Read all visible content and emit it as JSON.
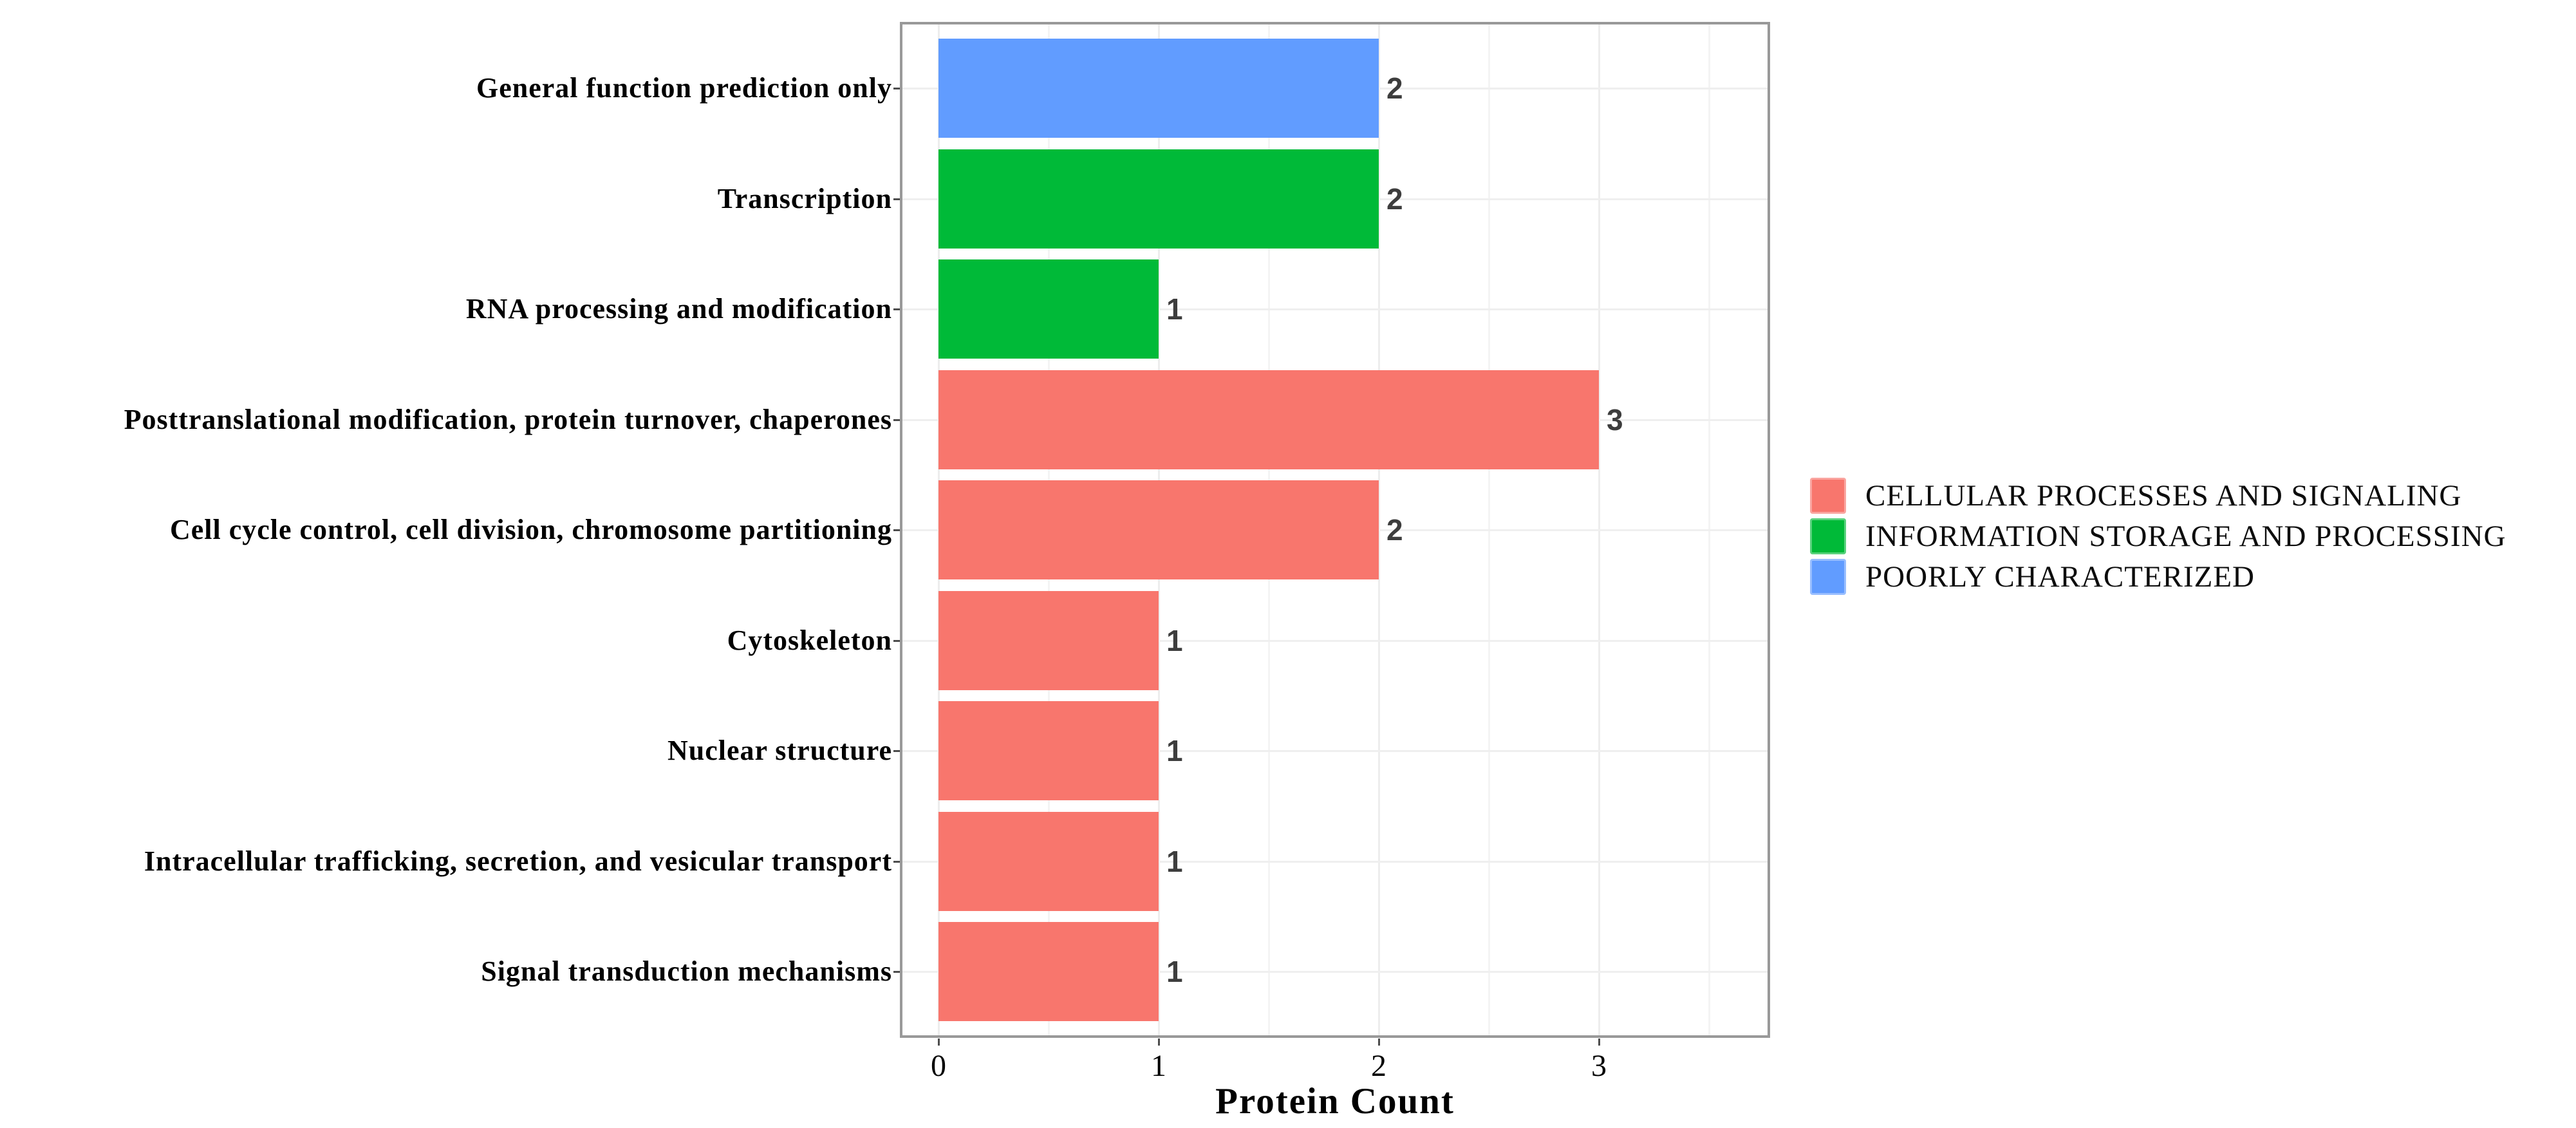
{
  "chart_data": {
    "type": "bar",
    "orientation": "horizontal",
    "title": "",
    "xlabel": "Protein Count",
    "ylabel": "",
    "x_ticks": [
      "0",
      "1",
      "2",
      "3"
    ],
    "x_axis_range": [
      -0.18,
      3.78
    ],
    "grid": "on",
    "categories": [
      {
        "label": "General function prediction only",
        "value": 2,
        "group": "POORLY CHARACTERIZED"
      },
      {
        "label": "Transcription",
        "value": 2,
        "group": "INFORMATION STORAGE AND PROCESSING"
      },
      {
        "label": "RNA processing and modification",
        "value": 1,
        "group": "INFORMATION STORAGE AND PROCESSING"
      },
      {
        "label": "Posttranslational modification, protein turnover, chaperones",
        "value": 3,
        "group": "CELLULAR PROCESSES AND SIGNALING"
      },
      {
        "label": "Cell cycle control, cell division, chromosome partitioning",
        "value": 2,
        "group": "CELLULAR PROCESSES AND SIGNALING"
      },
      {
        "label": "Cytoskeleton",
        "value": 1,
        "group": "CELLULAR PROCESSES AND SIGNALING"
      },
      {
        "label": "Nuclear structure",
        "value": 1,
        "group": "CELLULAR PROCESSES AND SIGNALING"
      },
      {
        "label": "Intracellular trafficking, secretion, and vesicular transport",
        "value": 1,
        "group": "CELLULAR PROCESSES AND SIGNALING"
      },
      {
        "label": "Signal transduction mechanisms",
        "value": 1,
        "group": "CELLULAR PROCESSES AND SIGNALING"
      }
    ],
    "vertical_gridlines_major": [
      0,
      1,
      2,
      3
    ],
    "vertical_gridlines_minor": [
      0.5,
      1.5,
      2.5,
      3.5
    ],
    "legend": {
      "position": "right",
      "entries": [
        {
          "label": "CELLULAR PROCESSES AND SIGNALING",
          "color": "#F8766D"
        },
        {
          "label": "INFORMATION STORAGE AND PROCESSING",
          "color": "#00BA38"
        },
        {
          "label": "POORLY CHARACTERIZED",
          "color": "#619CFF"
        }
      ]
    },
    "group_colors": {
      "CELLULAR PROCESSES AND SIGNALING": "#F8766D",
      "INFORMATION STORAGE AND PROCESSING": "#00BA38",
      "POORLY CHARACTERIZED": "#619CFF"
    },
    "panel_border_color": "#999999",
    "gridline_major_color": "#ededed",
    "gridline_minor_color": "#f4f4f4",
    "value_label_color": "#3d3d3d"
  }
}
